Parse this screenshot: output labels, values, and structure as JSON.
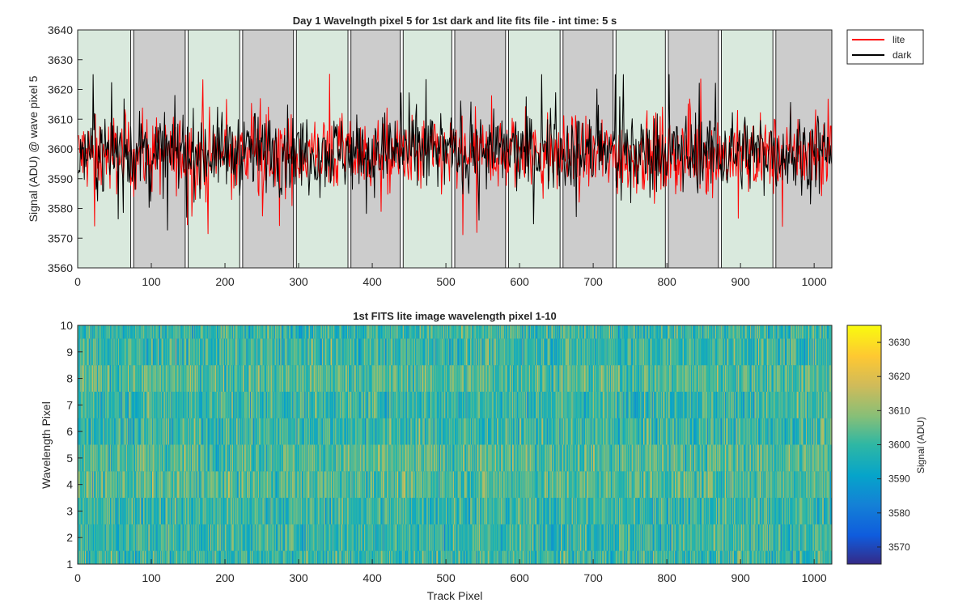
{
  "chart_data": [
    {
      "type": "line",
      "title": "Day 1 Wavelngth pixel 5 for 1st dark and lite fits file - int time: 5 s",
      "xlabel": "",
      "ylabel": "Signal (ADU) @ wave pixel 5",
      "xlim": [
        0,
        1024
      ],
      "ylim": [
        3560,
        3640
      ],
      "xticks": [
        0,
        100,
        200,
        300,
        400,
        500,
        600,
        700,
        800,
        900,
        1000
      ],
      "yticks": [
        3560,
        3570,
        3580,
        3590,
        3600,
        3610,
        3620,
        3630,
        3640
      ],
      "legend": {
        "position": "outside-top-right",
        "entries": [
          "lite",
          "dark"
        ]
      },
      "series": [
        {
          "name": "lite",
          "color": "#ff0000",
          "mean": 3598,
          "noise_range": [
            3567,
            3627
          ]
        },
        {
          "name": "dark",
          "color": "#000000",
          "mean": 3599,
          "noise_range": [
            3571,
            3625
          ]
        }
      ],
      "bands": [
        {
          "from": 0,
          "to": 72,
          "fill": "#d9e9dd"
        },
        {
          "from": 76,
          "to": 146,
          "fill": "#cccccc"
        },
        {
          "from": 150,
          "to": 220,
          "fill": "#d9e9dd"
        },
        {
          "from": 224,
          "to": 293,
          "fill": "#cccccc"
        },
        {
          "from": 297,
          "to": 367,
          "fill": "#d9e9dd"
        },
        {
          "from": 371,
          "to": 438,
          "fill": "#cccccc"
        },
        {
          "from": 442,
          "to": 508,
          "fill": "#d9e9dd"
        },
        {
          "from": 512,
          "to": 581,
          "fill": "#cccccc"
        },
        {
          "from": 585,
          "to": 655,
          "fill": "#d9e9dd"
        },
        {
          "from": 659,
          "to": 727,
          "fill": "#cccccc"
        },
        {
          "from": 731,
          "to": 798,
          "fill": "#d9e9dd"
        },
        {
          "from": 802,
          "to": 870,
          "fill": "#cccccc"
        },
        {
          "from": 874,
          "to": 944,
          "fill": "#d9e9dd"
        },
        {
          "from": 948,
          "to": 1024,
          "fill": "#cccccc"
        }
      ]
    },
    {
      "type": "heatmap",
      "title": "1st FITS lite image wavelength pixel 1-10",
      "xlabel": "Track Pixel",
      "ylabel": "Wavelength Pixel",
      "xlim": [
        0,
        1024
      ],
      "ylim": [
        1,
        10
      ],
      "xticks": [
        0,
        100,
        200,
        300,
        400,
        500,
        600,
        700,
        800,
        900,
        1000
      ],
      "yticks": [
        1,
        2,
        3,
        4,
        5,
        6,
        7,
        8,
        9,
        10
      ],
      "rows": 10,
      "columns": 1024,
      "value_range": [
        3565,
        3635
      ],
      "mean": 3600,
      "colorbar": {
        "label": "Signal (ADU)",
        "ticks": [
          3570,
          3580,
          3590,
          3600,
          3610,
          3620,
          3630
        ],
        "colormap": "parula"
      }
    }
  ]
}
